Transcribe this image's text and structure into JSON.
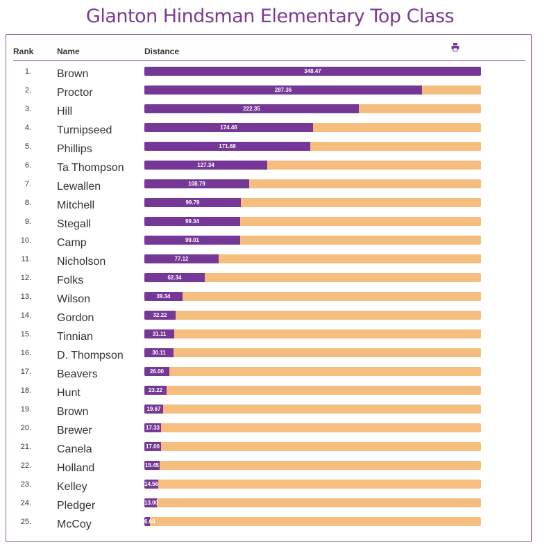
{
  "page": {
    "title": "Glanton Hindsman Elementary Top Class",
    "columns": {
      "rank": "Rank",
      "name": "Name",
      "distance": "Distance"
    },
    "print_icon": "print-icon"
  },
  "colors": {
    "title": "#7b3a96",
    "fill": "#763896",
    "track": "#f6be7e"
  },
  "chart_data": {
    "type": "bar",
    "orientation": "horizontal",
    "title": "Glanton Hindsman Elementary Top Class",
    "xlabel": "Distance",
    "xlim": [
      0,
      348.47
    ],
    "rows": [
      {
        "rank": "1.",
        "name": "Brown",
        "value": 348.47,
        "label": "348.47"
      },
      {
        "rank": "2.",
        "name": "Proctor",
        "value": 287.36,
        "label": "287.36"
      },
      {
        "rank": "3.",
        "name": "Hill",
        "value": 222.35,
        "label": "222.35"
      },
      {
        "rank": "4.",
        "name": "Turnipseed",
        "value": 174.46,
        "label": "174.46"
      },
      {
        "rank": "5.",
        "name": "Phillips",
        "value": 171.68,
        "label": "171.68"
      },
      {
        "rank": "6.",
        "name": "Ta Thompson",
        "value": 127.34,
        "label": "127.34"
      },
      {
        "rank": "7.",
        "name": "Lewallen",
        "value": 108.79,
        "label": "108.79"
      },
      {
        "rank": "8.",
        "name": "Mitchell",
        "value": 99.79,
        "label": "99.79"
      },
      {
        "rank": "9.",
        "name": "Stegall",
        "value": 99.34,
        "label": "99.34"
      },
      {
        "rank": "10.",
        "name": "Camp",
        "value": 99.01,
        "label": "99.01"
      },
      {
        "rank": "11.",
        "name": "Nicholson",
        "value": 77.12,
        "label": "77.12"
      },
      {
        "rank": "12.",
        "name": "Folks",
        "value": 62.34,
        "label": "62.34"
      },
      {
        "rank": "13.",
        "name": "Wilson",
        "value": 39.34,
        "label": "39.34"
      },
      {
        "rank": "14.",
        "name": "Gordon",
        "value": 32.22,
        "label": "32.22"
      },
      {
        "rank": "15.",
        "name": "Tinnian",
        "value": 31.11,
        "label": "31.11"
      },
      {
        "rank": "16.",
        "name": "D. Thompson",
        "value": 30.11,
        "label": "30.11"
      },
      {
        "rank": "17.",
        "name": "Beavers",
        "value": 26.0,
        "label": "26.00"
      },
      {
        "rank": "18.",
        "name": "Hunt",
        "value": 23.22,
        "label": "23.22"
      },
      {
        "rank": "19.",
        "name": "Brown",
        "value": 19.67,
        "label": "19.67"
      },
      {
        "rank": "20.",
        "name": "Brewer",
        "value": 17.33,
        "label": "17.33"
      },
      {
        "rank": "21.",
        "name": "Canela",
        "value": 17.0,
        "label": "17.00"
      },
      {
        "rank": "22.",
        "name": "Holland",
        "value": 15.45,
        "label": "15.45"
      },
      {
        "rank": "23.",
        "name": "Kelley",
        "value": 14.56,
        "label": "14.56"
      },
      {
        "rank": "24.",
        "name": "Pledger",
        "value": 13.0,
        "label": "13.00"
      },
      {
        "rank": "25.",
        "name": "McCoy",
        "value": 6.0,
        "label": "6.00"
      }
    ]
  }
}
